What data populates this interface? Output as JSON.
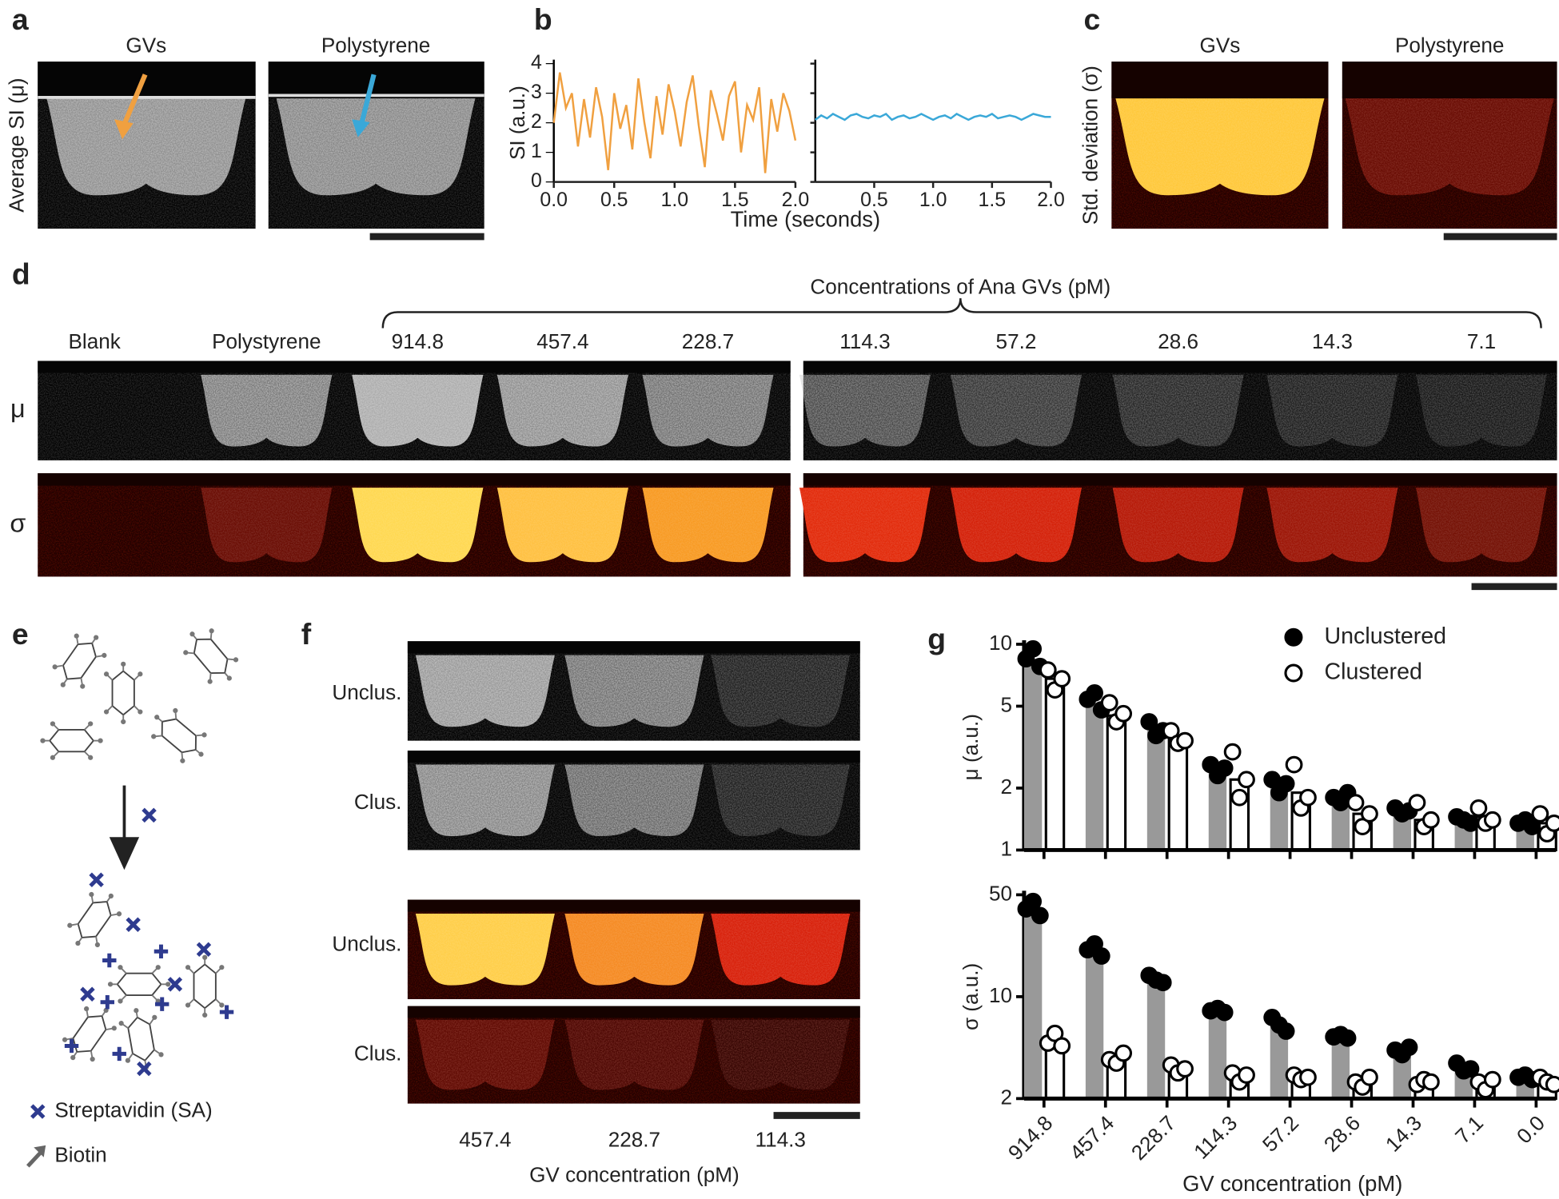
{
  "panels": [
    "a",
    "b",
    "c",
    "d",
    "e",
    "f",
    "g"
  ],
  "panel_a": {
    "titles": [
      "GVs",
      "Polystyrene"
    ],
    "ylabel": "Average SI (μ)"
  },
  "panel_c": {
    "titles": [
      "GVs",
      "Polystyrene"
    ],
    "ylabel": "Std. deviation (σ)"
  },
  "panel_d": {
    "group_label": "Concentrations of Ana GVs (pM)",
    "columns": [
      "Blank",
      "Polystyrene",
      "914.8",
      "457.4",
      "228.7",
      "114.3",
      "57.2",
      "28.6",
      "14.3",
      "7.1"
    ],
    "rows": [
      "μ",
      "σ"
    ]
  },
  "panel_e": {
    "legend": [
      "Streptavidin (SA)",
      "Biotin"
    ]
  },
  "panel_f": {
    "rows": [
      "Unclus.",
      "Clus.",
      "Unclus.",
      "Clus."
    ],
    "columns": [
      "457.4",
      "228.7",
      "114.3"
    ],
    "xlabel": "GV concentration (pM)"
  },
  "chart_data": [
    {
      "type": "line",
      "ylabel": "SI (a.u.)",
      "xlabel": "Time (seconds)",
      "x": [
        0,
        0.05,
        0.1,
        0.15,
        0.2,
        0.25,
        0.3,
        0.35,
        0.4,
        0.45,
        0.5,
        0.55,
        0.6,
        0.65,
        0.7,
        0.75,
        0.8,
        0.85,
        0.9,
        0.95,
        1,
        1.05,
        1.1,
        1.15,
        1.2,
        1.25,
        1.3,
        1.35,
        1.4,
        1.45,
        1.5,
        1.55,
        1.6,
        1.65,
        1.7,
        1.75,
        1.8,
        1.85,
        1.9,
        1.95,
        2
      ],
      "series": [
        {
          "color": "#f0a040",
          "values": [
            2.0,
            3.7,
            2.5,
            3.0,
            1.2,
            2.8,
            1.5,
            3.2,
            2.2,
            0.4,
            3.0,
            1.8,
            2.6,
            1.1,
            3.5,
            2.0,
            0.8,
            2.9,
            1.6,
            3.3,
            2.4,
            1.2,
            2.7,
            3.6,
            1.9,
            0.5,
            3.1,
            2.3,
            1.4,
            2.9,
            3.4,
            1.0,
            2.6,
            2.1,
            3.2,
            0.3,
            2.8,
            1.7,
            3.0,
            2.4,
            1.4
          ]
        }
      ],
      "xlim": [
        0,
        2
      ],
      "ylim": [
        0,
        4
      ],
      "xticks": [
        {
          "value": 0,
          "label": "0.0"
        },
        0.5,
        {
          "value": 1,
          "label": "1.0"
        },
        1.5,
        {
          "value": 2,
          "label": "2.0"
        }
      ],
      "yticks": [
        0,
        1,
        2,
        3,
        4
      ]
    },
    {
      "type": "line",
      "x": [
        0,
        0.05,
        0.1,
        0.15,
        0.2,
        0.25,
        0.3,
        0.35,
        0.4,
        0.45,
        0.5,
        0.55,
        0.6,
        0.65,
        0.7,
        0.75,
        0.8,
        0.85,
        0.9,
        0.95,
        1,
        1.05,
        1.1,
        1.15,
        1.2,
        1.25,
        1.3,
        1.35,
        1.4,
        1.45,
        1.5,
        1.55,
        1.6,
        1.65,
        1.7,
        1.75,
        1.8,
        1.85,
        1.9,
        1.95,
        2
      ],
      "series": [
        {
          "color": "#3aa8d8",
          "values": [
            2.1,
            2.25,
            2.15,
            2.3,
            2.2,
            2.1,
            2.25,
            2.3,
            2.2,
            2.15,
            2.25,
            2.2,
            2.3,
            2.1,
            2.2,
            2.25,
            2.15,
            2.2,
            2.3,
            2.2,
            2.1,
            2.2,
            2.25,
            2.15,
            2.3,
            2.2,
            2.1,
            2.2,
            2.25,
            2.2,
            2.3,
            2.15,
            2.2,
            2.25,
            2.2,
            2.1,
            2.2,
            2.3,
            2.25,
            2.2,
            2.2
          ]
        }
      ],
      "xlim": [
        0,
        2
      ],
      "ylim": [
        0,
        4
      ],
      "xticks": [
        0.5,
        {
          "value": 1,
          "label": "1.0"
        },
        1.5,
        {
          "value": 2,
          "label": "2.0"
        }
      ]
    },
    {
      "type": "bar",
      "ylabel": "μ (a.u.)",
      "log_y": true,
      "legend": "top-right",
      "categories": [
        null,
        null,
        null,
        null,
        null,
        null,
        null,
        null,
        null
      ],
      "series": [
        {
          "name": "Unclustered",
          "color": "#999999",
          "marker": "filled",
          "values": [
            8.5,
            5.2,
            3.8,
            2.4,
            2.1,
            1.75,
            1.5,
            1.4,
            1.35
          ],
          "points": [
            [
              8.5,
              9.5,
              7.8
            ],
            [
              5.4,
              5.8,
              4.8
            ],
            [
              4.2,
              3.6,
              3.8
            ],
            [
              2.6,
              2.3,
              2.5
            ],
            [
              2.2,
              1.9,
              2.1
            ],
            [
              1.8,
              1.7,
              1.9
            ],
            [
              1.6,
              1.5,
              1.55
            ],
            [
              1.45,
              1.4,
              1.35
            ],
            [
              1.35,
              1.4,
              1.3
            ]
          ]
        },
        {
          "name": "Clustered",
          "color": "#ffffff",
          "edgecolor": "#000000",
          "marker": "open",
          "values": [
            6.8,
            4.5,
            3.5,
            2.2,
            1.9,
            1.5,
            1.4,
            1.45,
            1.35
          ],
          "points": [
            [
              7.5,
              6.0,
              6.8
            ],
            [
              5.2,
              4.2,
              4.6
            ],
            [
              3.8,
              3.3,
              3.4
            ],
            [
              3.0,
              1.8,
              2.2
            ],
            [
              2.6,
              1.6,
              1.8
            ],
            [
              1.7,
              1.3,
              1.5
            ],
            [
              1.7,
              1.3,
              1.4
            ],
            [
              1.6,
              1.35,
              1.4
            ],
            [
              1.5,
              1.2,
              1.35
            ]
          ]
        }
      ],
      "ylim": [
        1,
        10
      ],
      "yticks": [
        1,
        2,
        5,
        10
      ]
    },
    {
      "type": "bar",
      "ylabel": "σ (a.u.)",
      "xlabel": "GV concentration (pM)",
      "log_y": true,
      "categories": [
        "914.8",
        "457.4",
        "228.7",
        "114.3",
        "57.2",
        "28.6",
        "14.3",
        "7.1",
        "0.0"
      ],
      "series": [
        {
          "color": "#999999",
          "marker": "filled",
          "values": [
            38,
            20,
            13,
            7.6,
            6.5,
            5.0,
            4.1,
            3.3,
            2.8
          ],
          "points": [
            [
              40,
              45,
              36
            ],
            [
              21,
              23,
              19
            ],
            [
              14,
              13,
              12.5
            ],
            [
              8,
              8.3,
              7.8
            ],
            [
              7.2,
              6.4,
              5.8
            ],
            [
              5.3,
              5.5,
              5.2
            ],
            [
              4.3,
              4.0,
              4.5
            ],
            [
              3.5,
              3.1,
              3.2
            ],
            [
              2.8,
              2.9,
              2.7
            ]
          ]
        },
        {
          "color": "#ffffff",
          "edgecolor": "#000000",
          "marker": "open",
          "values": [
            4.4,
            3.6,
            3.3,
            2.8,
            2.7,
            2.6,
            2.6,
            2.6,
            2.7
          ],
          "points": [
            [
              4.8,
              5.6,
              4.6
            ],
            [
              3.7,
              3.5,
              4.1
            ],
            [
              3.4,
              3.0,
              3.2
            ],
            [
              3.0,
              2.6,
              2.9
            ],
            [
              2.9,
              2.7,
              2.8
            ],
            [
              2.6,
              2.4,
              2.8
            ],
            [
              2.5,
              2.7,
              2.6
            ],
            [
              2.6,
              2.3,
              2.7
            ],
            [
              2.8,
              2.6,
              2.5
            ]
          ]
        }
      ],
      "ylim": [
        2,
        50
      ],
      "yticks": [
        2,
        10,
        50
      ]
    }
  ]
}
